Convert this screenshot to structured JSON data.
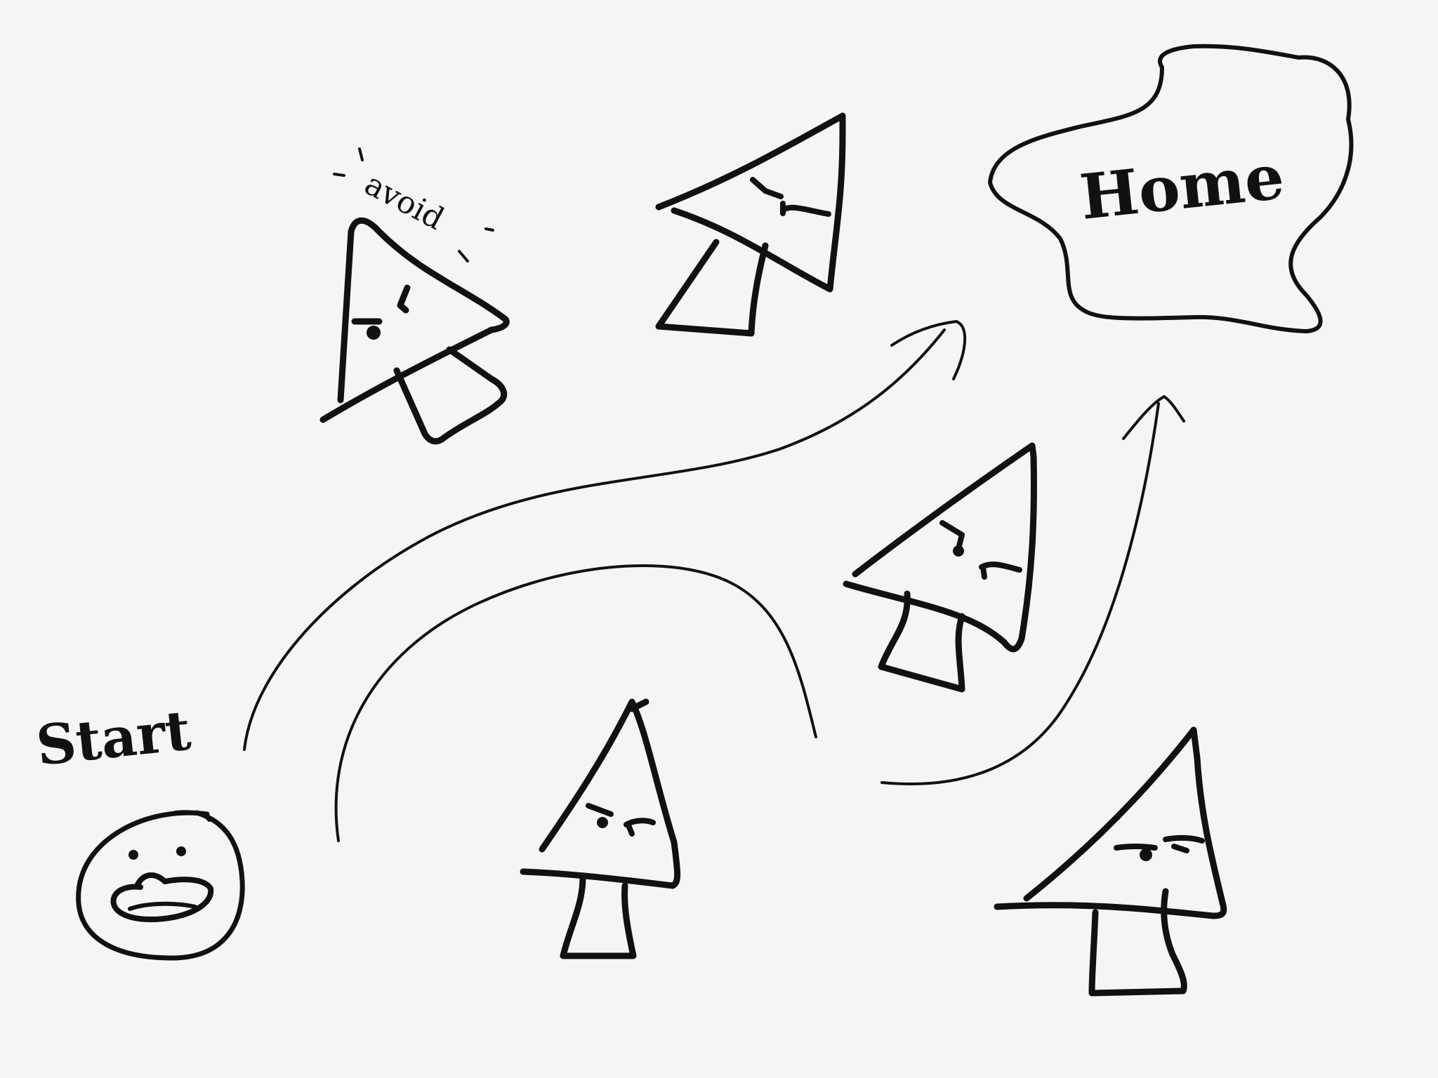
{
  "labels": {
    "start": "Start",
    "avoid": "avoid",
    "home": "Home"
  },
  "icons": {
    "start_face": "scared-face-icon",
    "cursor_enemy": "angry-cursor-icon",
    "goal": "home-cloud-icon",
    "path": "curved-arrow-icon"
  },
  "colors": {
    "background": "#f5f5f4",
    "ink": "#111111"
  }
}
